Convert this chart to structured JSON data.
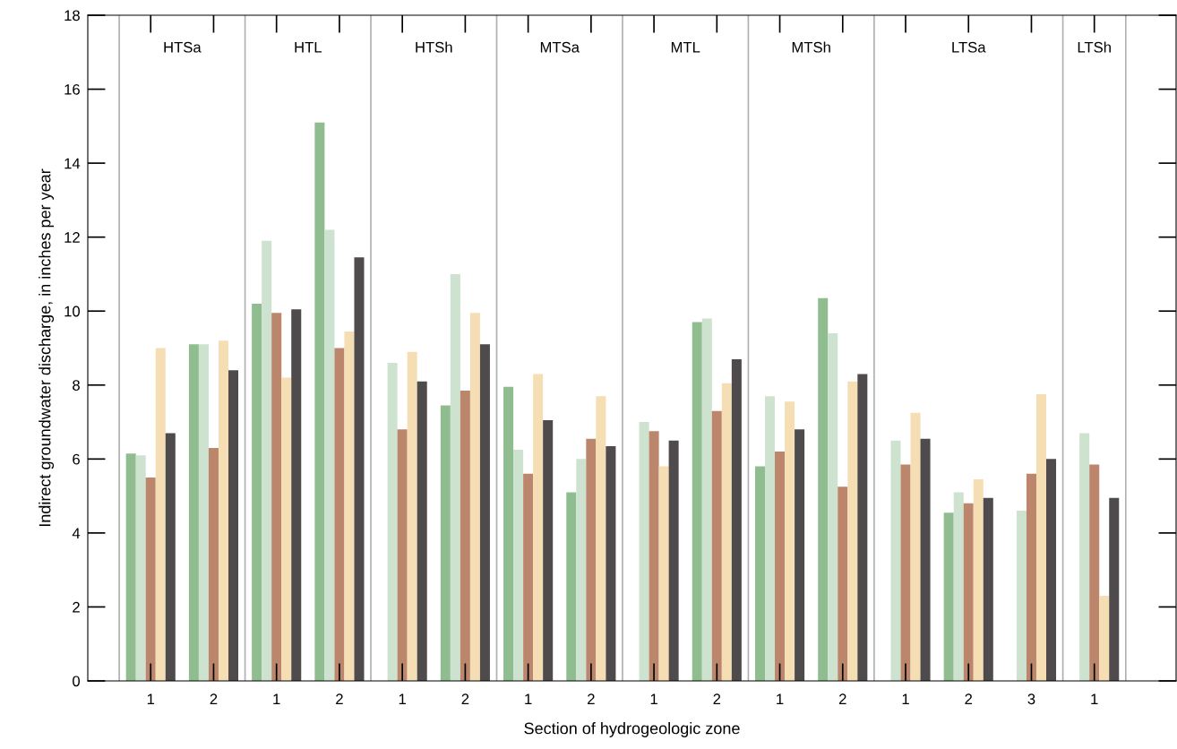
{
  "chart_data": {
    "type": "bar",
    "xlabel": "Section of hydrogeologic zone",
    "ylabel": "Indirect groundwater discharge, in inches per year",
    "categories": [
      "1",
      "2",
      "1",
      "2",
      "1",
      "2",
      "1",
      "2",
      "1",
      "2",
      "1",
      "2",
      "1",
      "2",
      "3",
      "1"
    ],
    "series": [
      {
        "color": "#8fbd8f",
        "values": [
          6.15,
          9.1,
          10.2,
          15.1,
          null,
          7.45,
          7.95,
          5.1,
          null,
          9.7,
          5.8,
          10.35,
          null,
          4.55,
          null,
          null
        ]
      },
      {
        "color": "#cde2cf",
        "values": [
          6.1,
          9.1,
          11.9,
          12.2,
          8.6,
          11.0,
          6.25,
          6.0,
          7.0,
          9.8,
          7.7,
          9.4,
          6.5,
          5.1,
          4.6,
          6.7
        ]
      },
      {
        "color": "#bb866b",
        "values": [
          5.5,
          6.3,
          9.95,
          9.0,
          6.8,
          7.85,
          5.6,
          6.55,
          6.75,
          7.3,
          6.2,
          5.25,
          5.85,
          4.8,
          5.6,
          5.85
        ]
      },
      {
        "color": "#f5deb3",
        "values": [
          9.0,
          9.2,
          8.2,
          9.45,
          8.9,
          9.95,
          8.3,
          7.7,
          5.8,
          8.05,
          7.55,
          8.1,
          7.25,
          5.45,
          7.75,
          2.3
        ]
      },
      {
        "color": "#4f4b4c",
        "values": [
          6.7,
          8.4,
          10.05,
          11.45,
          8.1,
          9.1,
          7.05,
          6.35,
          6.5,
          8.7,
          6.8,
          8.3,
          6.55,
          4.95,
          6.0,
          4.95
        ]
      }
    ],
    "annotations": [
      "HTSa",
      "HTL",
      "HTSh",
      "MTSa",
      "MTL",
      "MTSh",
      "LTSa",
      "LTSh"
    ],
    "ylim": [
      0,
      18
    ],
    "yticks": [
      0,
      2,
      4,
      6,
      8,
      10,
      12,
      14,
      16,
      18
    ],
    "grid": false,
    "legend": false
  }
}
